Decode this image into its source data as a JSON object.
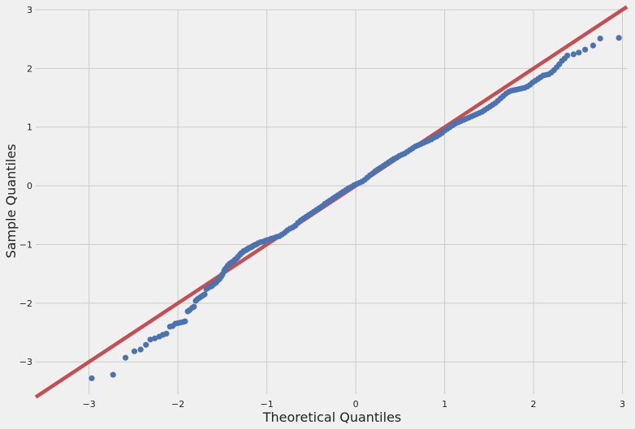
{
  "chart_data": {
    "type": "scatter",
    "title": "",
    "xlabel": "Theoretical Quantiles",
    "ylabel": "Sample Quantiles",
    "xlim": [
      -3.6,
      3.05
    ],
    "ylim": [
      -3.55,
      3.0
    ],
    "xticks": [
      "−3",
      "−2",
      "−1",
      "0",
      "1",
      "2",
      "3"
    ],
    "yticks": [
      "−3",
      "−2",
      "−1",
      "0",
      "1",
      "2",
      "3"
    ],
    "xtick_values": [
      -3,
      -2,
      -1,
      0,
      1,
      2,
      3
    ],
    "ytick_values": [
      -3,
      -2,
      -1,
      0,
      1,
      2,
      3
    ],
    "grid": true,
    "colors": {
      "points": "#4c72b0",
      "line": "#c44e52",
      "grid": "#cbcbcb",
      "background": "#f0f0f0"
    },
    "reference_line": {
      "slope": 1.0,
      "intercept": 0.0
    },
    "points": [
      [
        -2.97,
        -3.28
      ],
      [
        -2.73,
        -3.22
      ],
      [
        -2.59,
        -2.93
      ],
      [
        -2.49,
        -2.82
      ],
      [
        -2.42,
        -2.79
      ],
      [
        -2.36,
        -2.71
      ],
      [
        -2.31,
        -2.62
      ],
      [
        -2.26,
        -2.6
      ],
      [
        -2.21,
        -2.57
      ],
      [
        -2.17,
        -2.54
      ],
      [
        -2.13,
        -2.52
      ],
      [
        -2.09,
        -2.4
      ],
      [
        -2.06,
        -2.39
      ],
      [
        -2.03,
        -2.35
      ],
      [
        -2.0,
        -2.34
      ],
      [
        -1.97,
        -2.33
      ],
      [
        -1.94,
        -2.32
      ],
      [
        -1.92,
        -2.31
      ],
      [
        -1.89,
        -2.14
      ],
      [
        -1.87,
        -2.12
      ],
      [
        -1.84,
        -2.08
      ],
      [
        -1.82,
        -2.06
      ],
      [
        -1.8,
        -1.96
      ],
      [
        -1.78,
        -1.93
      ],
      [
        -1.76,
        -1.91
      ],
      [
        -1.74,
        -1.89
      ],
      [
        -1.72,
        -1.87
      ],
      [
        -1.7,
        -1.85
      ],
      [
        -1.68,
        -1.76
      ],
      [
        -1.66,
        -1.74
      ],
      [
        -1.64,
        -1.72
      ],
      [
        -1.62,
        -1.71
      ],
      [
        -1.61,
        -1.69
      ],
      [
        -1.59,
        -1.67
      ],
      [
        -1.57,
        -1.65
      ],
      [
        -1.56,
        -1.62
      ],
      [
        -1.54,
        -1.6
      ],
      [
        -1.53,
        -1.58
      ],
      [
        -1.51,
        -1.54
      ],
      [
        -1.5,
        -1.51
      ],
      [
        -1.48,
        -1.45
      ],
      [
        -1.47,
        -1.42
      ],
      [
        -1.45,
        -1.39
      ],
      [
        -1.44,
        -1.36
      ],
      [
        -1.42,
        -1.33
      ],
      [
        -1.41,
        -1.32
      ],
      [
        -1.4,
        -1.31
      ],
      [
        -1.38,
        -1.29
      ],
      [
        -1.37,
        -1.28
      ],
      [
        -1.36,
        -1.26
      ],
      [
        -1.34,
        -1.24
      ],
      [
        -1.33,
        -1.22
      ],
      [
        -1.32,
        -1.2
      ],
      [
        -1.3,
        -1.17
      ],
      [
        -1.29,
        -1.15
      ],
      [
        -1.28,
        -1.14
      ],
      [
        -1.27,
        -1.13
      ],
      [
        -1.26,
        -1.11
      ],
      [
        -1.24,
        -1.1
      ],
      [
        -1.23,
        -1.09
      ],
      [
        -1.22,
        -1.08
      ],
      [
        -1.21,
        -1.07
      ],
      [
        -1.2,
        -1.06
      ],
      [
        -1.18,
        -1.05
      ],
      [
        -1.17,
        -1.04
      ],
      [
        -1.16,
        -1.03
      ],
      [
        -1.15,
        -1.02
      ],
      [
        -1.14,
        -1.01
      ],
      [
        -1.12,
        -1.0
      ],
      [
        -1.1,
        -0.98
      ],
      [
        -1.07,
        -0.96
      ],
      [
        -1.04,
        -0.95
      ],
      [
        -1.01,
        -0.93
      ],
      [
        -0.98,
        -0.92
      ],
      [
        -0.95,
        -0.9
      ],
      [
        -0.92,
        -0.89
      ],
      [
        -0.89,
        -0.87
      ],
      [
        -0.86,
        -0.86
      ],
      [
        -0.83,
        -0.83
      ],
      [
        -0.8,
        -0.8
      ],
      [
        -0.77,
        -0.76
      ],
      [
        -0.74,
        -0.73
      ],
      [
        -0.71,
        -0.71
      ],
      [
        -0.68,
        -0.68
      ],
      [
        -0.65,
        -0.63
      ],
      [
        -0.62,
        -0.59
      ],
      [
        -0.59,
        -0.56
      ],
      [
        -0.56,
        -0.53
      ],
      [
        -0.53,
        -0.5
      ],
      [
        -0.5,
        -0.47
      ],
      [
        -0.47,
        -0.44
      ],
      [
        -0.44,
        -0.41
      ],
      [
        -0.41,
        -0.38
      ],
      [
        -0.38,
        -0.35
      ],
      [
        -0.35,
        -0.31
      ],
      [
        -0.32,
        -0.28
      ],
      [
        -0.29,
        -0.25
      ],
      [
        -0.26,
        -0.22
      ],
      [
        -0.23,
        -0.19
      ],
      [
        -0.2,
        -0.16
      ],
      [
        -0.17,
        -0.13
      ],
      [
        -0.14,
        -0.1
      ],
      [
        -0.11,
        -0.07
      ],
      [
        -0.08,
        -0.04
      ],
      [
        -0.05,
        -0.02
      ],
      [
        -0.02,
        0.01
      ],
      [
        0.01,
        0.03
      ],
      [
        0.04,
        0.05
      ],
      [
        0.07,
        0.07
      ],
      [
        0.1,
        0.1
      ],
      [
        0.13,
        0.14
      ],
      [
        0.16,
        0.18
      ],
      [
        0.19,
        0.21
      ],
      [
        0.22,
        0.25
      ],
      [
        0.25,
        0.28
      ],
      [
        0.28,
        0.31
      ],
      [
        0.31,
        0.34
      ],
      [
        0.34,
        0.37
      ],
      [
        0.37,
        0.4
      ],
      [
        0.4,
        0.43
      ],
      [
        0.43,
        0.46
      ],
      [
        0.46,
        0.48
      ],
      [
        0.49,
        0.51
      ],
      [
        0.52,
        0.53
      ],
      [
        0.55,
        0.55
      ],
      [
        0.58,
        0.58
      ],
      [
        0.61,
        0.61
      ],
      [
        0.64,
        0.64
      ],
      [
        0.67,
        0.67
      ],
      [
        0.7,
        0.69
      ],
      [
        0.73,
        0.71
      ],
      [
        0.76,
        0.73
      ],
      [
        0.79,
        0.75
      ],
      [
        0.82,
        0.77
      ],
      [
        0.85,
        0.79
      ],
      [
        0.88,
        0.82
      ],
      [
        0.91,
        0.84
      ],
      [
        0.94,
        0.87
      ],
      [
        0.97,
        0.9
      ],
      [
        1.0,
        0.94
      ],
      [
        1.03,
        0.97
      ],
      [
        1.06,
        1.0
      ],
      [
        1.09,
        1.03
      ],
      [
        1.12,
        1.06
      ],
      [
        1.15,
        1.08
      ],
      [
        1.18,
        1.1
      ],
      [
        1.21,
        1.12
      ],
      [
        1.24,
        1.14
      ],
      [
        1.27,
        1.16
      ],
      [
        1.3,
        1.18
      ],
      [
        1.33,
        1.2
      ],
      [
        1.36,
        1.22
      ],
      [
        1.39,
        1.24
      ],
      [
        1.42,
        1.26
      ],
      [
        1.45,
        1.29
      ],
      [
        1.48,
        1.32
      ],
      [
        1.51,
        1.35
      ],
      [
        1.54,
        1.38
      ],
      [
        1.57,
        1.41
      ],
      [
        1.6,
        1.45
      ],
      [
        1.63,
        1.49
      ],
      [
        1.66,
        1.53
      ],
      [
        1.69,
        1.57
      ],
      [
        1.72,
        1.6
      ],
      [
        1.75,
        1.62
      ],
      [
        1.78,
        1.63
      ],
      [
        1.81,
        1.64
      ],
      [
        1.84,
        1.65
      ],
      [
        1.87,
        1.66
      ],
      [
        1.9,
        1.67
      ],
      [
        1.93,
        1.69
      ],
      [
        1.96,
        1.72
      ],
      [
        1.99,
        1.76
      ],
      [
        2.02,
        1.79
      ],
      [
        2.05,
        1.82
      ],
      [
        2.08,
        1.85
      ],
      [
        2.11,
        1.88
      ],
      [
        2.14,
        1.89
      ],
      [
        2.17,
        1.9
      ],
      [
        2.2,
        1.93
      ],
      [
        2.23,
        1.97
      ],
      [
        2.26,
        2.02
      ],
      [
        2.29,
        2.07
      ],
      [
        2.32,
        2.13
      ],
      [
        2.35,
        2.17
      ],
      [
        2.38,
        2.22
      ],
      [
        2.45,
        2.24
      ],
      [
        2.51,
        2.27
      ],
      [
        2.58,
        2.32
      ],
      [
        2.67,
        2.39
      ],
      [
        2.75,
        2.51
      ],
      [
        2.96,
        2.52
      ]
    ]
  }
}
